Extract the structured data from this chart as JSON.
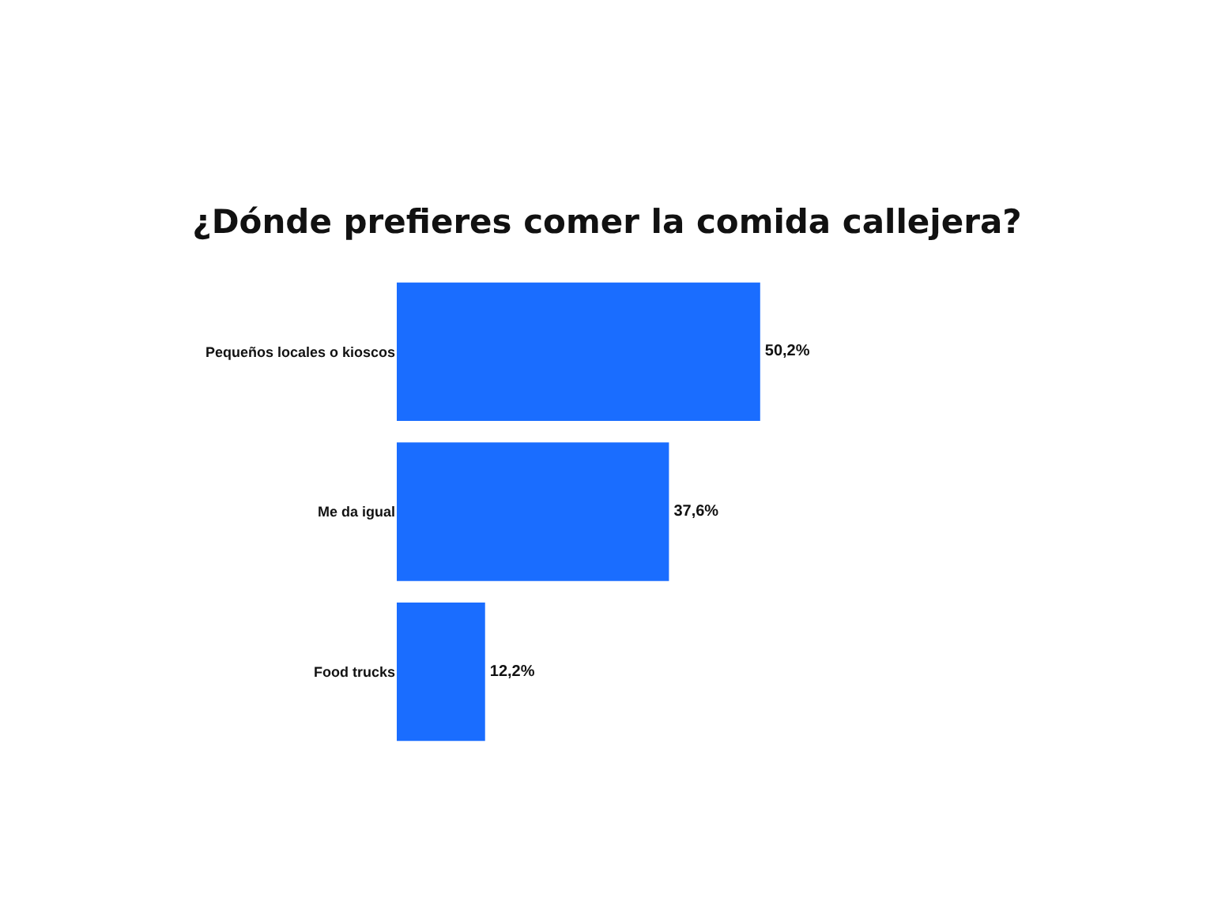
{
  "chart_data": {
    "type": "bar",
    "orientation": "horizontal",
    "title": "¿Dónde prefieres comer la comida callejera?",
    "categories": [
      "Pequeños locales o kioscos",
      "Me da igual",
      "Food trucks"
    ],
    "values": [
      50.2,
      37.6,
      12.2
    ],
    "value_labels": [
      "50,2%",
      "37,6%",
      "12,2%"
    ],
    "color": "#1a6dff",
    "tick_labels": "y"
  }
}
